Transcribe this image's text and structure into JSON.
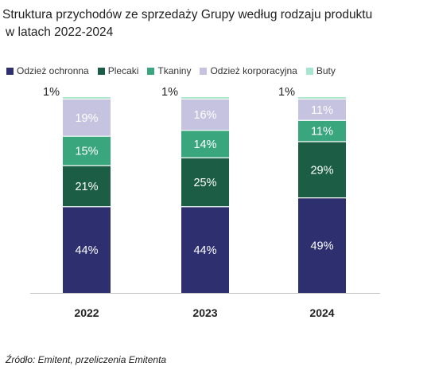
{
  "title_line1": "Struktura przychodów ze sprzedaży Grupy według rodzaju produktu",
  "title_line2": "w latach 2022-2024",
  "source": "Źródło: Emitent, przeliczenia Emitenta",
  "chart_data": {
    "type": "bar",
    "stacked": true,
    "percent_stacked": true,
    "categories": [
      "2022",
      "2023",
      "2024"
    ],
    "series": [
      {
        "name": "Odzież ochronna",
        "color": "#2e2f6e",
        "values": [
          44,
          44,
          49
        ]
      },
      {
        "name": "Plecaki",
        "color": "#1c5e45",
        "values": [
          21,
          25,
          29
        ]
      },
      {
        "name": "Tkaniny",
        "color": "#3aa67e",
        "values": [
          15,
          14,
          11
        ]
      },
      {
        "name": "Odzież korporacyjna",
        "color": "#c5c3e0",
        "values": [
          19,
          16,
          11
        ]
      },
      {
        "name": "Buty",
        "color": "#a9e6cf",
        "values": [
          1,
          1,
          1
        ]
      }
    ],
    "data_labels": [
      [
        "44%",
        "21%",
        "15%",
        "19%",
        "1%"
      ],
      [
        "44%",
        "25%",
        "14%",
        "16%",
        "1%"
      ],
      [
        "49%",
        "29%",
        "11%",
        "11%",
        "1%"
      ]
    ],
    "ylim": [
      0,
      100
    ],
    "legend": "top",
    "grid": false
  }
}
